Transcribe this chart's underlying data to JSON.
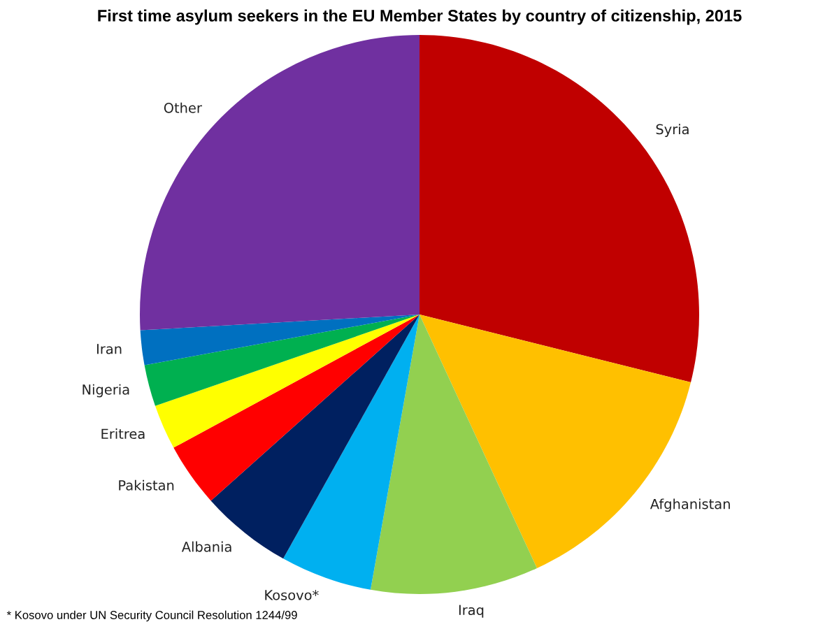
{
  "chart_data": {
    "type": "pie",
    "title": "First time asylum seekers in the EU Member States by country of citizenship, 2015",
    "categories": [
      "Syria",
      "Afghanistan",
      "Iraq",
      "Kosovo*",
      "Albania",
      "Pakistan",
      "Eritrea",
      "Nigeria",
      "Iran",
      "Other"
    ],
    "values": [
      28.9,
      14.2,
      9.7,
      5.3,
      5.3,
      3.7,
      2.6,
      2.4,
      2.0,
      25.9
    ],
    "colors": [
      "#c00000",
      "#ffc000",
      "#92d050",
      "#00b0f0",
      "#002060",
      "#ff0000",
      "#ffff00",
      "#00b050",
      "#0070c0",
      "#7030a0"
    ],
    "annotations": [
      "* Kosovo under UN Security Council Resolution 1244/99"
    ]
  }
}
